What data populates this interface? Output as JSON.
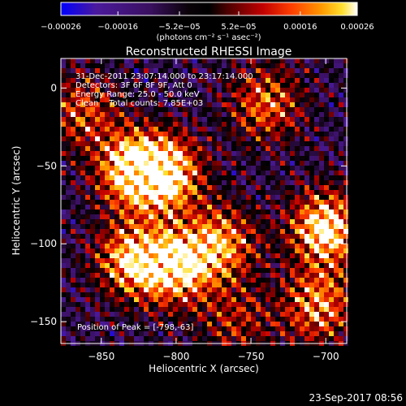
{
  "chart_data": {
    "type": "heatmap",
    "title": "Reconstructed RHESSI Image",
    "xlabel": "Heliocentric X (arcsec)",
    "ylabel": "Heliocentric Y (arcsec)",
    "xlim": [
      -877,
      -686
    ],
    "ylim": [
      -164,
      19
    ],
    "x_ticks": [
      -850,
      -800,
      -750,
      -700
    ],
    "y_ticks": [
      0,
      -50,
      -100,
      -150
    ],
    "x_tick_labels": [
      "−850",
      "−800",
      "−750",
      "−700"
    ],
    "y_tick_labels": [
      "0",
      "−50",
      "−100",
      "−150"
    ],
    "colorbar": {
      "tick_values": [
        -0.00026,
        -0.00016,
        -5.2e-05,
        5.2e-05,
        0.00016,
        0.00026
      ],
      "tick_labels": [
        "−0.00026",
        "−0.00016",
        "−5.2e−05",
        "5.2e−05",
        "0.00016",
        "0.00026"
      ],
      "range": [
        -0.00026,
        0.00026
      ],
      "units": "(photons cm⁻² s⁻¹ asec⁻²)",
      "colormap": [
        "#0000ff",
        "#4b1a9c",
        "#3a1060",
        "#000000",
        "#4a0000",
        "#c00000",
        "#ff4000",
        "#ff9a00",
        "#ffe030",
        "#ffffff"
      ]
    },
    "grid": false,
    "peak": {
      "x": -798,
      "y": -63
    },
    "annotations": [
      "31-Dec-2011 23:07:14.000 to 23:17:14.000",
      "Detectors: 3F 6F 8F 9F, Att 0",
      "Energy Range: 25.0 - 50.0 keV",
      "Clean    Total counts: 7.85E+03",
      "Position of Peak = [-798,-63]"
    ],
    "sources": [
      {
        "x": -830,
        "y": -52,
        "weight": 1.0
      },
      {
        "x": -807,
        "y": -55,
        "weight": 1.1
      },
      {
        "x": -830,
        "y": -110,
        "weight": 0.9
      },
      {
        "x": -800,
        "y": -115,
        "weight": 1.0
      },
      {
        "x": -770,
        "y": -100,
        "weight": 0.8
      },
      {
        "x": -700,
        "y": -90,
        "weight": 1.1
      },
      {
        "x": -705,
        "y": -140,
        "weight": 0.8
      },
      {
        "x": -740,
        "y": -10,
        "weight": 0.7
      },
      {
        "x": -863,
        "y": -15,
        "weight": 0.6
      },
      {
        "x": -760,
        "y": -150,
        "weight": 0.45
      }
    ]
  },
  "footer": {
    "timestamp": "23-Sep-2017 08:56"
  }
}
